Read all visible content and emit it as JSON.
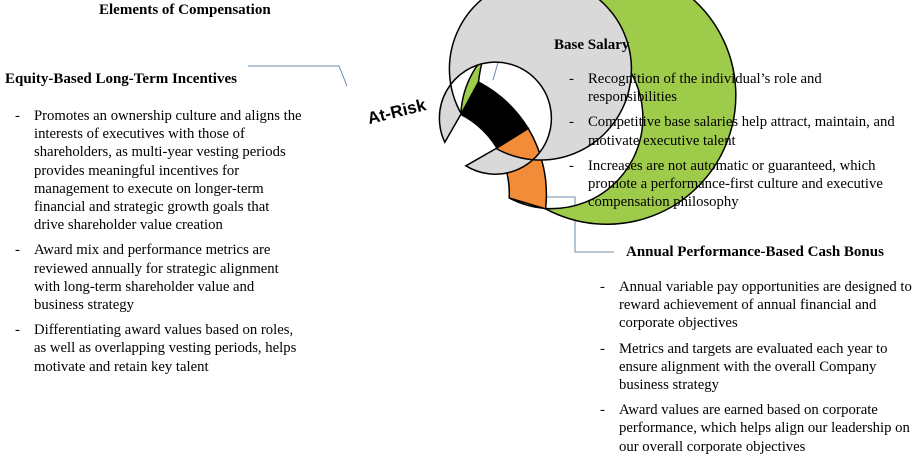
{
  "title": "Elements of Compensation",
  "ring_label": "At-Risk",
  "colors": {
    "equity": "#9FCB4A",
    "base": "#000000",
    "bonus": "#F28C38",
    "at_risk_ring": "#D9D9D9",
    "leader": "#6E8BA8"
  },
  "equity": {
    "heading": "Equity-Based Long-Term Incentives",
    "bullets": [
      "Promotes an ownership culture and aligns the interests of executives with those of shareholders, as multi-year vesting periods provides meaningful incentives for management to execute on longer-term financial and strategic growth goals that drive shareholder value creation",
      "Award mix and performance metrics are reviewed annually for strategic alignment with long-term shareholder value and business strategy",
      "Differentiating award values based on roles, as well as overlapping vesting periods, helps motivate and retain key talent"
    ]
  },
  "base_salary": {
    "heading": "Base Salary",
    "bullets": [
      "Recognition of the individual’s role and responsibilities",
      "Competitive base salaries help attract, maintain, and motivate executive talent",
      "Increases are not automatic or guaranteed, which promote a performance-first culture and executive compensation philosophy"
    ]
  },
  "bonus": {
    "heading": "Annual Performance-Based Cash Bonus",
    "bullets": [
      "Annual variable pay opportunities are designed to reward achievement of annual financial and corporate objectives",
      "Metrics and targets are evaluated each year to ensure alignment with the overall Company business strategy",
      "Award values are earned based on corporate performance, which helps align our leadership on our overall corporate objectives"
    ]
  }
}
